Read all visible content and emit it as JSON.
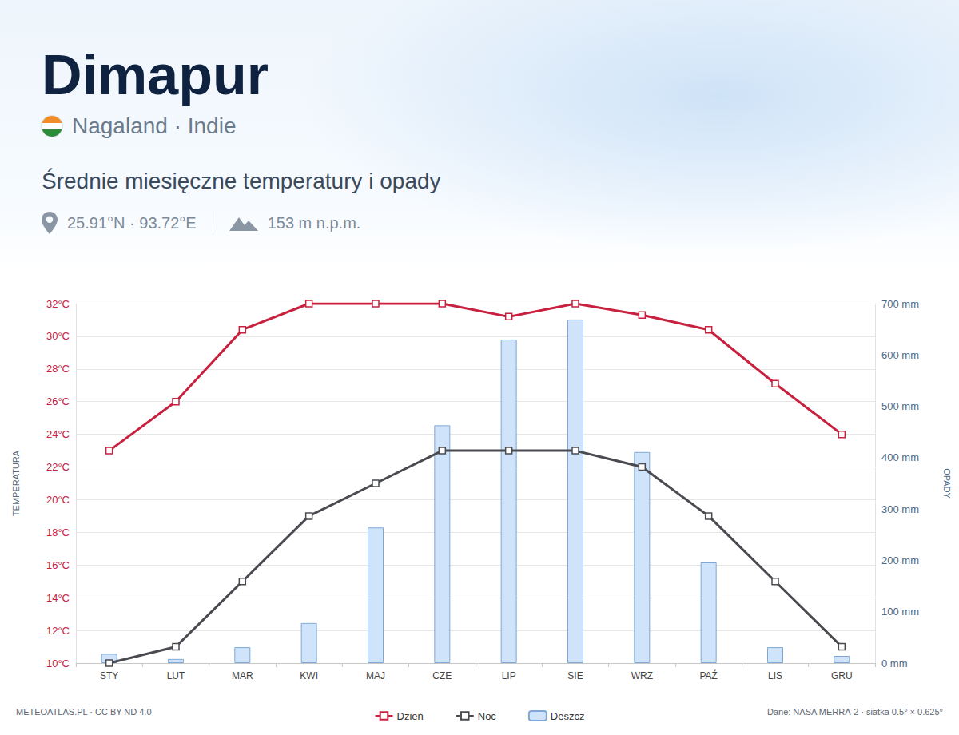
{
  "header": {
    "title": "Dimapur",
    "location": "Nagaland · Indie",
    "coordinates": "25.91°N · 93.72°E",
    "elevation": "153 m n.p.m."
  },
  "footer": {
    "left": "METEOATLAS.PL · CC BY-ND 4.0",
    "right": "Dane: NASA MERRA-2 · siatka 0.5° × 0.625°"
  },
  "chart_data": {
    "type": "line",
    "title": "Średnie miesięczne temperatury i opady",
    "ylabel": "TEMPERATURA",
    "y2label": "OPADY",
    "categories": [
      "STY",
      "LUT",
      "MAR",
      "KWI",
      "MAJ",
      "CZE",
      "LIP",
      "SIE",
      "WRZ",
      "PAŹ",
      "LIS",
      "GRU"
    ],
    "series": [
      {
        "name": "Dzień",
        "type": "line",
        "color": "#c8203f",
        "marker": "square",
        "values": [
          23,
          26,
          30.4,
          32,
          32,
          32,
          31.2,
          32,
          31.3,
          30.4,
          27.1,
          24
        ]
      },
      {
        "name": "Noc",
        "type": "line",
        "color": "#4a4b50",
        "marker": "square",
        "values": [
          10,
          11,
          15,
          19,
          21,
          23,
          23,
          23,
          22,
          19,
          15,
          11
        ]
      },
      {
        "name": "Deszcz",
        "type": "bar",
        "axis": "y2",
        "color": "#cfe3fa",
        "values": [
          18,
          8,
          31,
          78,
          264,
          463,
          630,
          669,
          411,
          196,
          31,
          14
        ]
      }
    ],
    "ylim": [
      10,
      32
    ],
    "yticks": [
      {
        "value": 10,
        "label": "10°C"
      },
      {
        "value": 12,
        "label": "12°C"
      },
      {
        "value": 14,
        "label": "14°C"
      },
      {
        "value": 16,
        "label": "16°C"
      },
      {
        "value": 18,
        "label": "18°C"
      },
      {
        "value": 20,
        "label": "20°C"
      },
      {
        "value": 22,
        "label": "22°C"
      },
      {
        "value": 24,
        "label": "24°C"
      },
      {
        "value": 26,
        "label": "26°C"
      },
      {
        "value": 28,
        "label": "28°C"
      },
      {
        "value": 30,
        "label": "30°C"
      },
      {
        "value": 32,
        "label": "32°C"
      }
    ],
    "y2lim": [
      0,
      700
    ],
    "y2ticks": [
      {
        "value": 0,
        "label": "0 mm"
      },
      {
        "value": 100,
        "label": "100 mm"
      },
      {
        "value": 200,
        "label": "200 mm"
      },
      {
        "value": 300,
        "label": "300 mm"
      },
      {
        "value": 400,
        "label": "400 mm"
      },
      {
        "value": 500,
        "label": "500 mm"
      },
      {
        "value": 600,
        "label": "600 mm"
      },
      {
        "value": 700,
        "label": "700 mm"
      }
    ],
    "grid": true,
    "legend": "bottom"
  }
}
